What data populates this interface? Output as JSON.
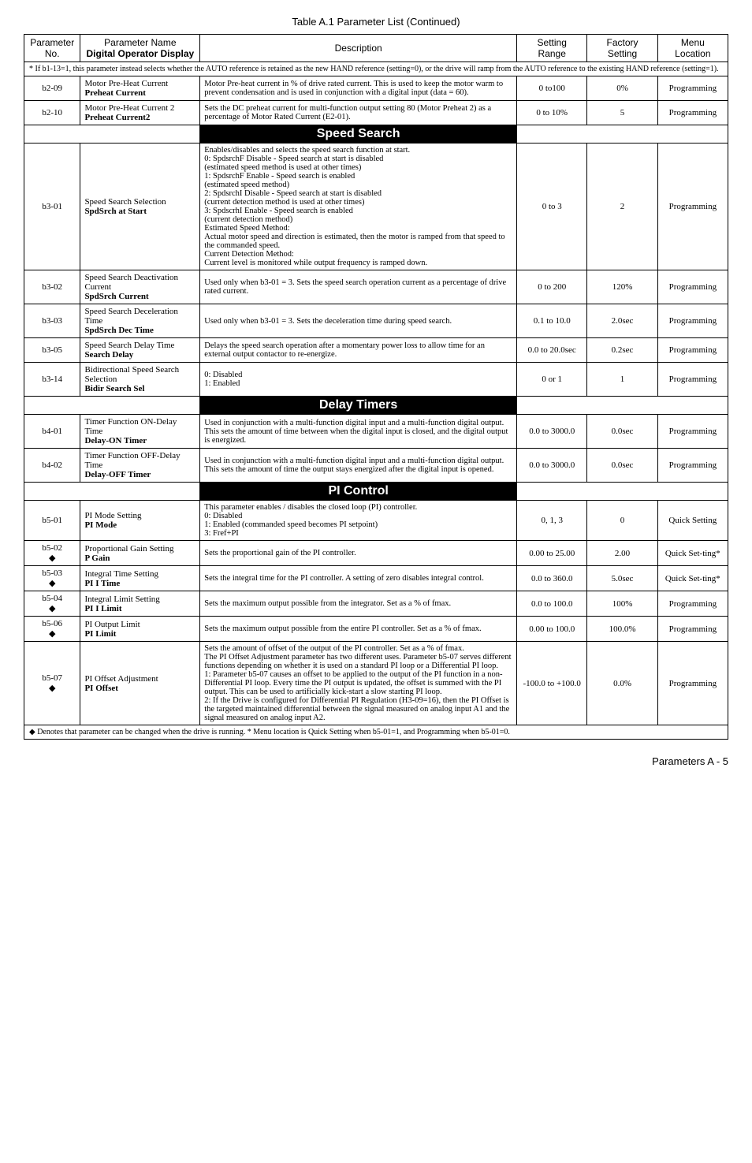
{
  "caption": "Table A.1  Parameter List (Continued)",
  "headers": {
    "param": "Parameter\nNo.",
    "name": "Parameter Name",
    "name2": "Digital Operator Display",
    "desc": "Description",
    "range": "Setting\nRange",
    "factory": "Factory\nSetting",
    "menu": "Menu\nLocation"
  },
  "note1": "* If b1-13=1, this parameter instead selects whether the AUTO reference is retained as the new HAND reference (setting=0), or the drive will ramp from the AUTO reference to the existing HAND reference (setting=1).",
  "rows": [
    {
      "no": "b2-09",
      "name": "Motor Pre-Heat Current",
      "bold": "Preheat Current",
      "desc": "Motor Pre-heat current in % of drive rated current. This is used to keep the motor warm to prevent condensation and is used in conjunction with a digital input (data = 60).",
      "range": "0 to100",
      "factory": "0%",
      "menu": "Programming"
    },
    {
      "no": "b2-10",
      "name": "Motor Pre-Heat Current 2",
      "bold": "Preheat Current2",
      "desc": "Sets the DC preheat current for multi-function output setting 80 (Motor Preheat 2) as a percentage of Motor Rated Current (E2-01).",
      "range": "0 to 10%",
      "factory": "5",
      "menu": "Programming"
    }
  ],
  "section2": "Speed Search",
  "rows2": [
    {
      "no": "b3-01",
      "name": "Speed Search Selection",
      "bold": "SpdSrch at Start",
      "desc": "Enables/disables and selects the speed search function at start.\n0:  SpdsrchF Disable - Speed search at start is disabled\n     (estimated speed method is used at other times)\n1:  SpdsrchF Enable - Speed search is enabled\n     (estimated speed method)\n2:  SpdsrchI Disable - Speed search at start is disabled\n     (current detection method is used at other times)\n3:  SpdscrhI Enable - Speed search is enabled\n     (current detection method)\nEstimated Speed Method:\nActual motor speed and direction is estimated, then the motor is ramped from that speed to the commanded speed.\nCurrent Detection Method:\nCurrent level is monitored while output frequency is ramped down.",
      "range": "0 to 3",
      "factory": "2",
      "menu": "Programming"
    },
    {
      "no": "b3-02",
      "name": "Speed Search Deactivation Current",
      "bold": "SpdSrch Current",
      "desc": "Used only when b3-01 = 3. Sets the speed search operation current as a percentage of drive rated current.",
      "range": "0 to 200",
      "factory": "120%",
      "menu": "Programming"
    },
    {
      "no": "b3-03",
      "name": "Speed Search Deceleration Time",
      "bold": "SpdSrch Dec Time",
      "desc": "Used only when b3-01 = 3. Sets the deceleration time during speed search.",
      "range": "0.1 to 10.0",
      "factory": "2.0sec",
      "menu": "Programming"
    },
    {
      "no": "b3-05",
      "name": "Speed Search Delay Time",
      "bold": "Search Delay",
      "desc": "Delays the speed search operation after a momentary power loss to allow time for an external output contactor to re-energize.",
      "range": "0.0 to 20.0sec",
      "factory": "0.2sec",
      "menu": "Programming"
    },
    {
      "no": "b3-14",
      "name": "Bidirectional Speed Search Selection",
      "bold": "Bidir Search Sel",
      "desc": "0:  Disabled\n1:  Enabled",
      "range": "0 or 1",
      "factory": "1",
      "menu": "Programming"
    }
  ],
  "section3": "Delay Timers",
  "rows3": [
    {
      "no": "b4-01",
      "name": "Timer Function ON-Delay Time",
      "bold": "Delay-ON Timer",
      "desc": "Used in conjunction with a multi-function digital input and a multi-function digital output. This sets the amount of time between when the digital input is closed, and the digital output is energized.",
      "range": "0.0 to 3000.0",
      "factory": "0.0sec",
      "menu": "Programming"
    },
    {
      "no": "b4-02",
      "name": "Timer Function OFF-Delay Time",
      "bold": "Delay-OFF Timer",
      "desc": "Used in conjunction with a multi-function digital input and a multi-function digital output. This sets the amount of time the output stays energized after the digital input is opened.",
      "range": "0.0 to 3000.0",
      "factory": "0.0sec",
      "menu": "Programming"
    }
  ],
  "section4": "PI Control",
  "rows4": [
    {
      "no": "b5-01",
      "name": "PI Mode Setting",
      "bold": "PI Mode",
      "desc": "This parameter enables / disables the closed loop (PI) controller.\n0:  Disabled\n1:  Enabled (commanded speed becomes PI setpoint)\n3:  Fref+PI",
      "range": "0, 1, 3",
      "factory": "0",
      "menu": "Quick Setting"
    },
    {
      "no": "b5-02\n◆",
      "name": "Proportional Gain Setting",
      "bold": "P Gain",
      "desc": "Sets the proportional gain of the PI controller.",
      "range": "0.00 to 25.00",
      "factory": "2.00",
      "menu": "Quick Set-ting*"
    },
    {
      "no": "b5-03\n◆",
      "name": "Integral Time Setting",
      "bold": "PI I Time",
      "desc": "Sets the integral time for the PI controller. A setting of zero disables integral control.",
      "range": "0.0 to 360.0",
      "factory": "5.0sec",
      "menu": "Quick Set-ting*"
    },
    {
      "no": "b5-04\n◆",
      "name": "Integral Limit Setting",
      "bold": "PI I Limit",
      "desc": "Sets the maximum output possible from the integrator. Set as a % of fmax.",
      "range": "0.0 to 100.0",
      "factory": "100%",
      "menu": "Programming"
    },
    {
      "no": "b5-06\n◆",
      "name": "PI Output Limit",
      "bold": "PI Limit",
      "desc": "Sets the maximum output possible from the entire PI controller. Set as a % of fmax.",
      "range": "0.00 to 100.0",
      "factory": "100.0%",
      "menu": "Programming"
    },
    {
      "no": "b5-07\n◆",
      "name": "PI Offset Adjustment",
      "bold": "PI Offset",
      "desc": "Sets the amount of offset of the output of the PI controller. Set as a % of fmax.\nThe PI Offset Adjustment parameter has two different uses. Parameter b5-07 serves different functions depending on whether it is used on a standard PI loop or a Differential PI loop.\n1:  Parameter b5-07 causes an offset to be applied to the output of the PI function in a non-Differential PI loop. Every time the PI output is updated, the offset is summed with the PI output. This can be used to artificially kick-start a slow starting PI loop.\n2:  If the Drive is configured for Differential PI Regulation (H3-09=16), then the PI Offset is the targeted maintained differential between the signal measured on analog input A1 and the signal measured on analog input A2.",
      "range": "-100.0 to +100.0",
      "factory": "0.0%",
      "menu": "Programming"
    }
  ],
  "bottom_note": "◆ Denotes that parameter can be changed when the drive is running.     * Menu location is Quick Setting when b5-01=1, and Programming when b5-01=0.",
  "footer": "Parameters   A - 5"
}
